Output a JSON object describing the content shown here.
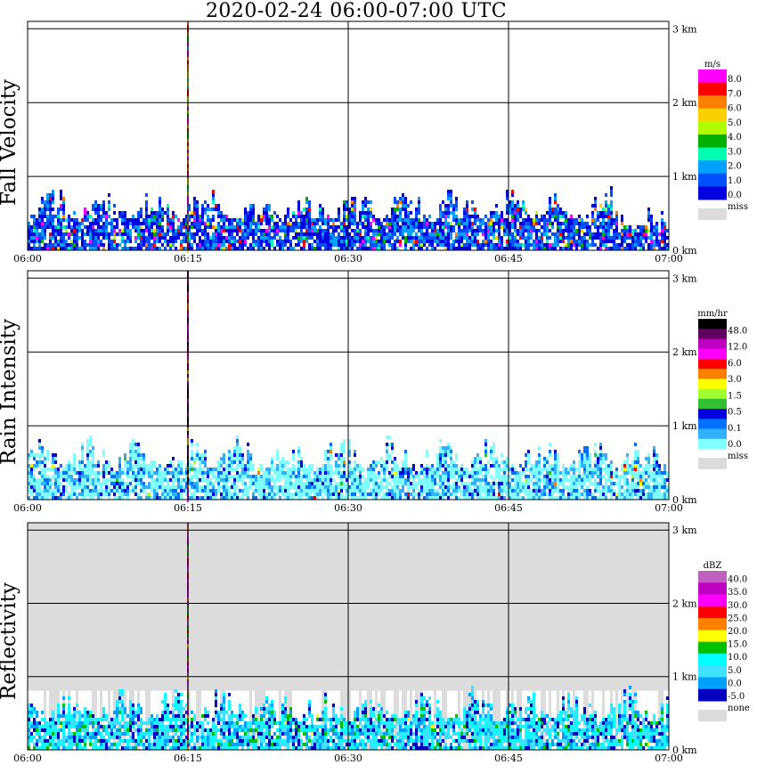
{
  "title": "2020-02-24   06:00-07:00 UTC",
  "chart_data": [
    {
      "type": "heatmap",
      "ylabel": "Fall Velocity",
      "x_ticks": [
        "06:00",
        "06:15",
        "06:30",
        "06:45",
        "07:00"
      ],
      "y_ticks": [
        "0 km",
        "1 km",
        "2 km",
        "3 km"
      ],
      "xlim": [
        "06:00",
        "07:00"
      ],
      "ylim_km": [
        0,
        3.1
      ],
      "grid": true,
      "background": "white",
      "data_top_km": 0.85,
      "colorbar": {
        "unit": "m/s",
        "labels": [
          "8.0",
          "7.0",
          "6.0",
          "5.0",
          "4.0",
          "3.0",
          "2.0",
          "1.0",
          "0.0"
        ],
        "colors": [
          "#ff00ff",
          "#ff0000",
          "#ff8000",
          "#ffd000",
          "#b0ff00",
          "#00b000",
          "#00ffb0",
          "#00a0ff",
          "#0050ff",
          "#0000e0"
        ],
        "missing_label": "miss",
        "missing_color": "#dcdcdc"
      },
      "palette_weights": [
        0.03,
        0.02,
        0.01,
        0.01,
        0.01,
        0.02,
        0.02,
        0.2,
        0.3,
        0.38
      ]
    },
    {
      "type": "heatmap",
      "ylabel": "Rain Intensity",
      "x_ticks": [
        "06:00",
        "06:15",
        "06:30",
        "06:45",
        "07:00"
      ],
      "y_ticks": [
        "0 km",
        "1 km",
        "2 km",
        "3 km"
      ],
      "xlim": [
        "06:00",
        "07:00"
      ],
      "ylim_km": [
        0,
        3.1
      ],
      "grid": true,
      "background": "white",
      "data_top_km": 0.85,
      "colorbar": {
        "unit": "mm/hr",
        "labels": [
          "48.0",
          "12.0",
          "6.0",
          "3.0",
          "1.5",
          "0.5",
          "0.1",
          "0.0"
        ],
        "colors": [
          "#000000",
          "#600060",
          "#c000c0",
          "#ff00ff",
          "#ff0000",
          "#ff8000",
          "#ffff00",
          "#a0ff30",
          "#30c030",
          "#0000e0",
          "#0070ff",
          "#30b0ff",
          "#80ffff"
        ],
        "missing_label": "miss",
        "missing_color": "#dcdcdc"
      },
      "palette_weights": [
        0,
        0,
        0,
        0,
        0.002,
        0.002,
        0.002,
        0.002,
        0.002,
        0.06,
        0.12,
        0.2,
        0.61
      ]
    },
    {
      "type": "heatmap",
      "ylabel": "Reflectivity",
      "x_ticks": [
        "06:00",
        "06:15",
        "06:30",
        "06:45",
        "07:00"
      ],
      "y_ticks": [
        "0 km",
        "1 km",
        "2 km",
        "3 km"
      ],
      "xlim": [
        "06:00",
        "07:00"
      ],
      "ylim_km": [
        0,
        3.1
      ],
      "grid": true,
      "background": "light-gray",
      "data_top_km": 0.85,
      "colorbar": {
        "unit": "dBZ",
        "labels": [
          "40.0",
          "35.0",
          "30.0",
          "25.0",
          "20.0",
          "15.0",
          "10.0",
          "5.0",
          "0.0",
          "-5.0"
        ],
        "colors": [
          "#c060c0",
          "#c000c0",
          "#ff00ff",
          "#ff0000",
          "#ff8000",
          "#ffff00",
          "#00c000",
          "#00ffff",
          "#40e0ff",
          "#00a0ff",
          "#0000c0"
        ],
        "missing_label": "none",
        "missing_color": "#dcdcdc"
      },
      "palette_weights": [
        0,
        0,
        0,
        0,
        0,
        0.005,
        0.05,
        0.3,
        0.3,
        0.2,
        0.145
      ]
    }
  ]
}
